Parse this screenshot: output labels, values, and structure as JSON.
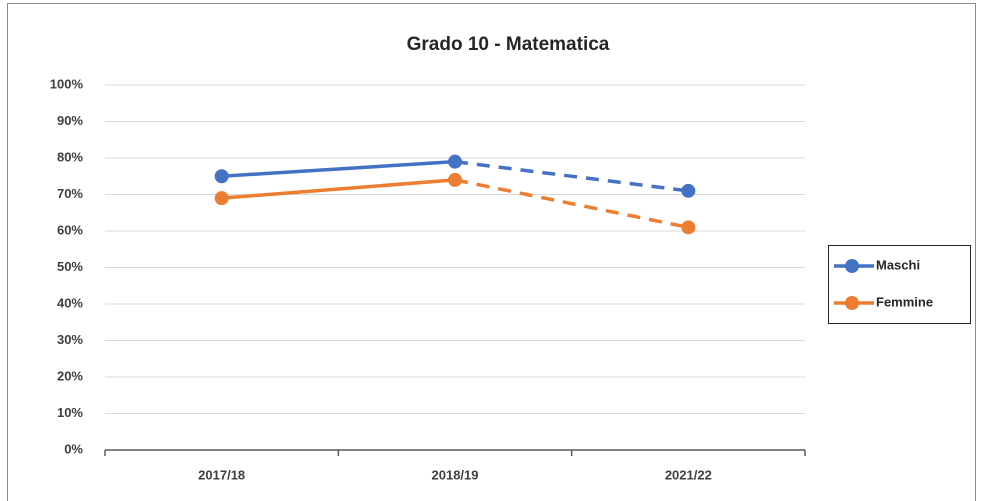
{
  "chart_data": {
    "type": "line",
    "title": "Grado 10 - Matematica",
    "categories": [
      "2017/18",
      "2018/19",
      "2021/22"
    ],
    "series": [
      {
        "name": "Maschi",
        "color": "#4472c4",
        "values": [
          75,
          79,
          71
        ],
        "line_styles": [
          "solid",
          "dashed"
        ]
      },
      {
        "name": "Femmine",
        "color": "#ed7d31",
        "values": [
          69,
          74,
          61
        ],
        "line_styles": [
          "solid",
          "dashed"
        ]
      }
    ],
    "ylim": [
      0,
      100
    ],
    "yticks": [
      {
        "value": 0,
        "label": "0%"
      },
      {
        "value": 10,
        "label": "10%"
      },
      {
        "value": 20,
        "label": "20%"
      },
      {
        "value": 30,
        "label": "30%"
      },
      {
        "value": 40,
        "label": "40%"
      },
      {
        "value": 50,
        "label": "50%"
      },
      {
        "value": 60,
        "label": "60%"
      },
      {
        "value": 70,
        "label": "70%"
      },
      {
        "value": 80,
        "label": "80%"
      },
      {
        "value": 90,
        "label": "90%"
      },
      {
        "value": 100,
        "label": "100%"
      }
    ],
    "grid": true,
    "legend": "right"
  }
}
